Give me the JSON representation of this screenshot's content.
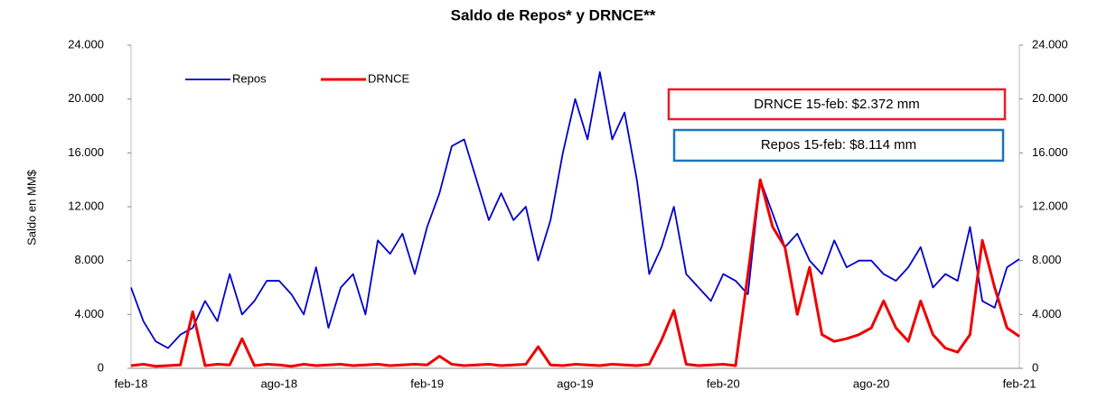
{
  "chart_data": {
    "type": "line",
    "title": "Saldo de Repos* y DRNCE**",
    "y_label": "Saldo en MM$",
    "categories": [
      "feb-18",
      null,
      null,
      null,
      null,
      null,
      null,
      null,
      null,
      null,
      null,
      null,
      "ago-18",
      null,
      null,
      null,
      null,
      null,
      null,
      null,
      null,
      null,
      null,
      null,
      "feb-19",
      null,
      null,
      null,
      null,
      null,
      null,
      null,
      null,
      null,
      null,
      null,
      "ago-19",
      null,
      null,
      null,
      null,
      null,
      null,
      null,
      null,
      null,
      null,
      null,
      "feb-20",
      null,
      null,
      null,
      null,
      null,
      null,
      null,
      null,
      null,
      null,
      null,
      "ago-20",
      null,
      null,
      null,
      null,
      null,
      null,
      null,
      null,
      null,
      null,
      null,
      "feb-21"
    ],
    "series": [
      {
        "name": "Repos",
        "color": "#0000cc",
        "values": [
          6000,
          3500,
          2000,
          1500,
          2500,
          3000,
          5000,
          3500,
          7000,
          4000,
          5000,
          6500,
          6500,
          5500,
          4000,
          7500,
          3000,
          6000,
          7000,
          4000,
          9500,
          8500,
          10000,
          7000,
          10500,
          13000,
          16500,
          17000,
          14000,
          11000,
          13000,
          11000,
          12000,
          8000,
          11000,
          16000,
          20000,
          17000,
          22000,
          17000,
          19000,
          14000,
          7000,
          9000,
          12000,
          7000,
          6000,
          5000,
          7000,
          6500,
          5500,
          14000,
          11500,
          9000,
          10000,
          8000,
          7000,
          9500,
          7500,
          8000,
          8000,
          7000,
          6500,
          7500,
          9000,
          6000,
          7000,
          6500,
          10500,
          5000,
          4500,
          7500,
          8114
        ]
      },
      {
        "name": "DRNCE",
        "color": "#ee0000",
        "axis": "y2",
        "values": [
          200,
          300,
          150,
          200,
          250,
          4200,
          200,
          300,
          250,
          2200,
          200,
          300,
          250,
          150,
          300,
          200,
          250,
          300,
          200,
          250,
          300,
          200,
          250,
          300,
          250,
          900,
          300,
          200,
          250,
          300,
          200,
          250,
          300,
          1600,
          250,
          200,
          300,
          250,
          200,
          300,
          250,
          200,
          300,
          2100,
          4300,
          300,
          200,
          250,
          300,
          200,
          7000,
          14000,
          10500,
          9000,
          4000,
          7500,
          2500,
          2000,
          2200,
          2500,
          3000,
          5000,
          3000,
          2000,
          5000,
          2500,
          1500,
          1200,
          2500,
          9500,
          6000,
          3000,
          2372
        ]
      }
    ],
    "ylim": [
      0,
      24000
    ],
    "yticks": [
      0,
      {
        "value": 4000,
        "label": "4.000"
      },
      {
        "value": 8000,
        "label": "8.000"
      },
      {
        "value": 12000,
        "label": "12.000"
      },
      {
        "value": 16000,
        "label": "16.000"
      },
      {
        "value": 20000,
        "label": "20.000"
      },
      {
        "value": 24000,
        "label": "24.000"
      }
    ],
    "y2lim": [
      0,
      24000
    ],
    "y2ticks": [
      0,
      {
        "value": 4000,
        "label": "4.000"
      },
      {
        "value": 8000,
        "label": "8.000"
      },
      {
        "value": 12000,
        "label": "12.000"
      },
      {
        "value": 16000,
        "label": "16.000"
      },
      {
        "value": 20000,
        "label": "20.000"
      },
      {
        "value": 24000,
        "label": "24.000"
      }
    ],
    "annotations": [
      "DRNCE 15-feb: $2.372 mm",
      "Repos 15-feb: $8.114 mm"
    ],
    "legend": "upper-left",
    "grid": false
  }
}
